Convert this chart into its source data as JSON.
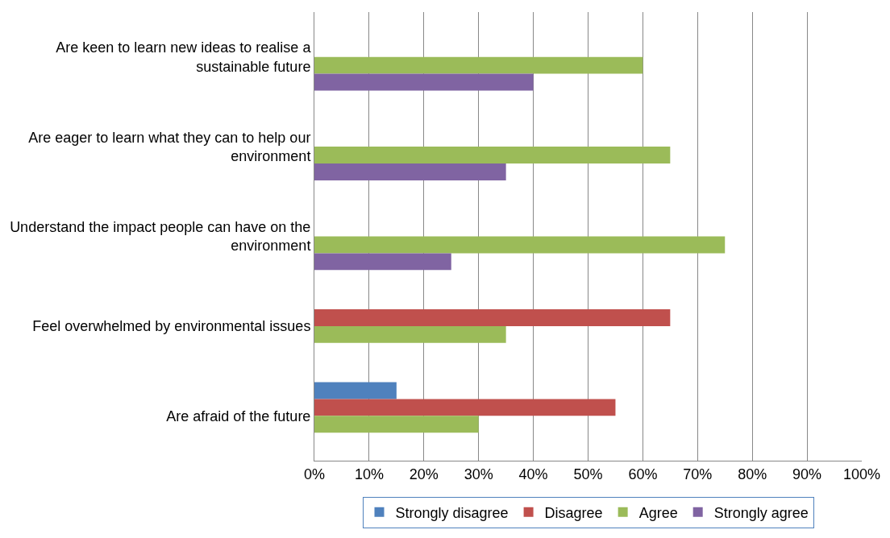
{
  "chart_data": {
    "type": "bar",
    "orientation": "horizontal",
    "categories": [
      "Are keen to learn new ideas to realise a sustainable future",
      "Are eager to learn what they can to help our environment",
      "Understand the impact people can have on the environment",
      "Feel overwhelmed by environmental issues",
      "Are afraid of the future"
    ],
    "series": [
      {
        "name": "Strongly disagree",
        "color": "#4f81bd",
        "values": [
          null,
          null,
          null,
          null,
          15
        ]
      },
      {
        "name": "Disagree",
        "color": "#c0504d",
        "values": [
          null,
          null,
          null,
          65,
          55
        ]
      },
      {
        "name": "Agree",
        "color": "#9bbb59",
        "values": [
          60,
          65,
          75,
          35,
          30
        ]
      },
      {
        "name": "Strongly agree",
        "color": "#8064a2",
        "values": [
          40,
          35,
          25,
          null,
          null
        ]
      }
    ],
    "xlim": [
      0,
      100
    ],
    "xticks": [
      {
        "value": 0,
        "label": "0%"
      },
      {
        "value": 10,
        "label": "10%"
      },
      {
        "value": 20,
        "label": "20%"
      },
      {
        "value": 30,
        "label": "30%"
      },
      {
        "value": 40,
        "label": "40%"
      },
      {
        "value": 50,
        "label": "50%"
      },
      {
        "value": 60,
        "label": "60%"
      },
      {
        "value": 70,
        "label": "70%"
      },
      {
        "value": 80,
        "label": "80%"
      },
      {
        "value": 90,
        "label": "90%"
      },
      {
        "value": 100,
        "label": "100%"
      }
    ],
    "grid": "x",
    "legend": "bottom"
  }
}
